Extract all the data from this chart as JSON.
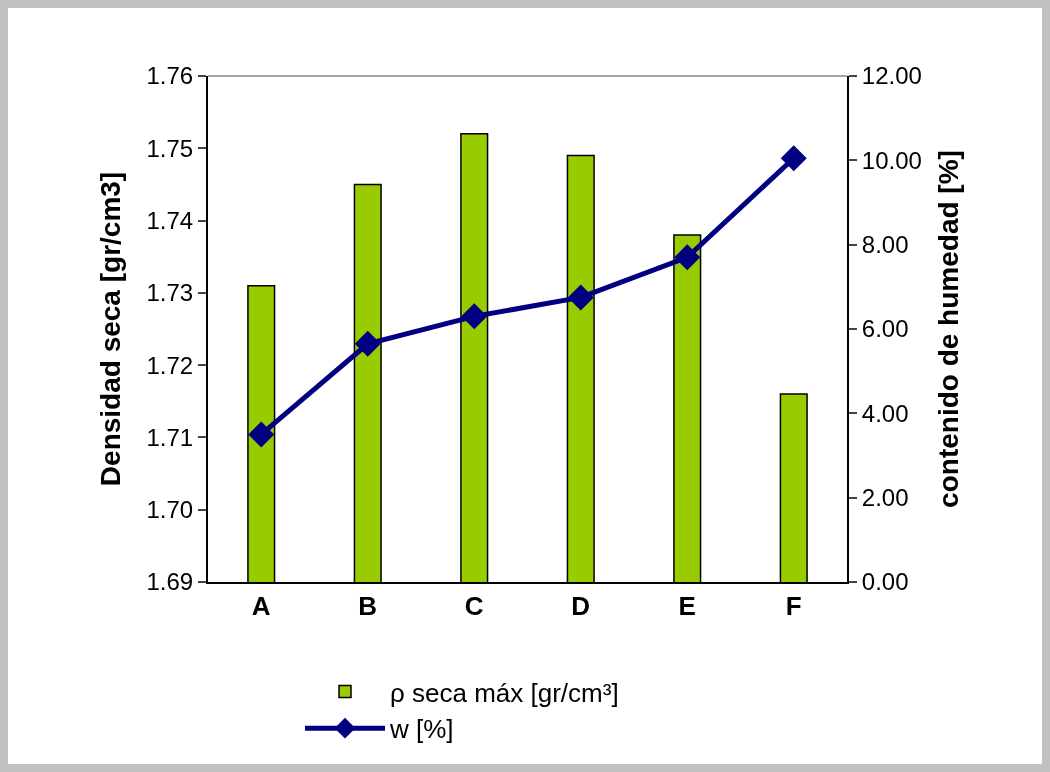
{
  "chart_data": {
    "type": "bar",
    "categories": [
      "A",
      "B",
      "C",
      "D",
      "E",
      "F"
    ],
    "ylabel": "Densidad seca [gr/cm3]",
    "y2label": "contenido de humedad [%]",
    "series": [
      {
        "name": "ρ seca máx [gr/cm³]",
        "color": "#99cc00",
        "values": [
          1.731,
          1.745,
          1.752,
          1.749,
          1.738,
          1.716
        ]
      },
      {
        "name": "w [%]",
        "type": "line",
        "axis": "y2",
        "color": "#000080",
        "marker": "diamond",
        "values": [
          3.5,
          5.65,
          6.3,
          6.75,
          7.7,
          10.05
        ]
      }
    ],
    "ylim": [
      1.69,
      1.76
    ],
    "yticks": [
      {
        "value": 1.69,
        "label": "1.69"
      },
      {
        "value": 1.7,
        "label": "1.70"
      },
      {
        "value": 1.71,
        "label": "1.71"
      },
      {
        "value": 1.72,
        "label": "1.72"
      },
      {
        "value": 1.73,
        "label": "1.73"
      },
      {
        "value": 1.74,
        "label": "1.74"
      },
      {
        "value": 1.75,
        "label": "1.75"
      },
      {
        "value": 1.76,
        "label": "1.76"
      }
    ],
    "y2lim": [
      0,
      12
    ],
    "y2ticks": [
      {
        "value": 0,
        "label": "0.00"
      },
      {
        "value": 2,
        "label": "2.00"
      },
      {
        "value": 4,
        "label": "4.00"
      },
      {
        "value": 6,
        "label": "6.00"
      },
      {
        "value": 8,
        "label": "8.00"
      },
      {
        "value": 10,
        "label": "10.00"
      },
      {
        "value": 12,
        "label": "12.00"
      }
    ],
    "grid": false,
    "legend": "bottom"
  }
}
